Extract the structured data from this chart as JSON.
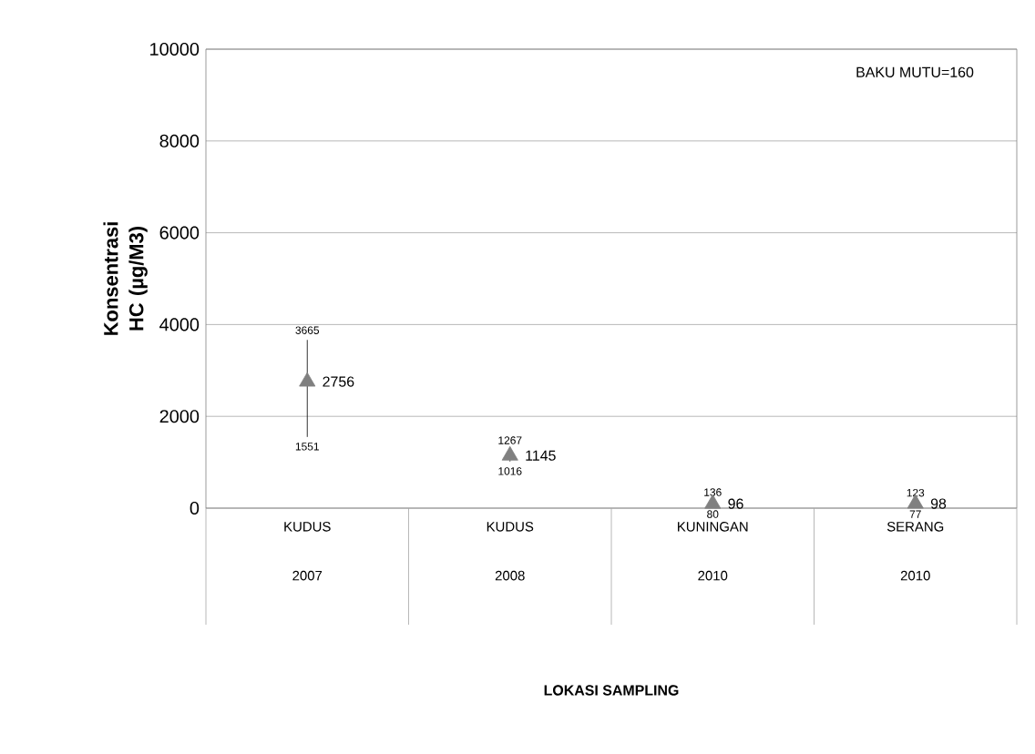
{
  "chart_data": {
    "type": "scatter",
    "categories": [
      "KUDUS 2007",
      "KUDUS 2008",
      "KUNINGAN 2010",
      "SERANG 2010"
    ],
    "values": [
      2756,
      1145,
      96,
      98
    ],
    "errors": [
      [
        1551,
        3665
      ],
      [
        1016,
        1267
      ],
      [
        80,
        136
      ],
      [
        77,
        123
      ]
    ],
    "value_labels": [
      "2756",
      "1145",
      "96",
      "98"
    ],
    "color": "#808080",
    "marker": "triangle",
    "ylabel": "Konsentrasi  HC (µg/M3)",
    "ylim": [
      0,
      10000
    ],
    "yticks": [
      0,
      2000,
      4000,
      6000,
      8000,
      10000
    ],
    "grid": "y",
    "annotations": [
      "BAKU MUTU=160",
      "LOKASI SAMPLING",
      {
        "text": "3665",
        "x": "KUDUS 2007",
        "y": 3665
      },
      {
        "text": "1551",
        "x": "KUDUS 2007",
        "y": 1551
      },
      {
        "text": "1267",
        "x": "KUDUS 2008",
        "y": 1267
      },
      {
        "text": "1016",
        "x": "KUDUS 2008",
        "y": 1016
      },
      {
        "text": "136",
        "x": "KUNINGAN 2010",
        "y": 136
      },
      {
        "text": "80",
        "x": "KUNINGAN 2010",
        "y": 80
      },
      {
        "text": "123",
        "x": "SERANG 2010",
        "y": 123
      },
      {
        "text": "77",
        "x": "SERANG 2010",
        "y": 77
      }
    ]
  }
}
